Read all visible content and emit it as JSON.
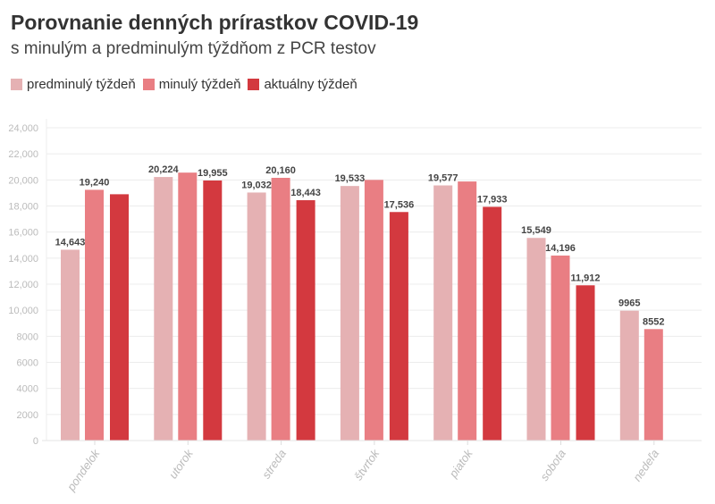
{
  "chart_data": {
    "type": "bar",
    "title": "Porovnanie denných prírastkov COVID-19",
    "subtitle": "s minulým a predminulým týždňom z PCR testov",
    "categories": [
      "pondelok",
      "utorok",
      "streda",
      "štvrtok",
      "piatok",
      "sobota",
      "nedeľa"
    ],
    "series": [
      {
        "name": "predminulý týždeň",
        "color": "#e5b1b3",
        "values": [
          14643,
          20224,
          19032,
          19533,
          19577,
          15549,
          9965
        ],
        "labels": [
          "14,643",
          "20,224",
          "19,032",
          "19,533",
          "19,577",
          "15,549",
          "9965"
        ]
      },
      {
        "name": "minulý týždeň",
        "color": "#e97e83",
        "values": [
          19240,
          20560,
          20160,
          20000,
          19880,
          14196,
          8552
        ],
        "labels": [
          "19,240",
          "",
          "20,160",
          "",
          "",
          "14,196",
          "8552"
        ]
      },
      {
        "name": "aktuálny týždeň",
        "color": "#d3393f",
        "values": [
          18900,
          19955,
          18443,
          17536,
          17933,
          11912,
          null
        ],
        "labels": [
          "",
          "19,955",
          "18,443",
          "17,536",
          "17,933",
          "11,912",
          ""
        ]
      }
    ],
    "ylim": [
      0,
      24000
    ],
    "yticks": [
      0,
      2000,
      4000,
      6000,
      8000,
      10000,
      12000,
      14000,
      16000,
      18000,
      20000,
      22000,
      24000
    ],
    "ytick_labels": [
      "0",
      "2000",
      "4000",
      "6000",
      "8000",
      "10,000",
      "12,000",
      "14,000",
      "16,000",
      "18,000",
      "20,000",
      "22,000",
      "24,000"
    ],
    "grid": true,
    "legend": "top-left"
  }
}
